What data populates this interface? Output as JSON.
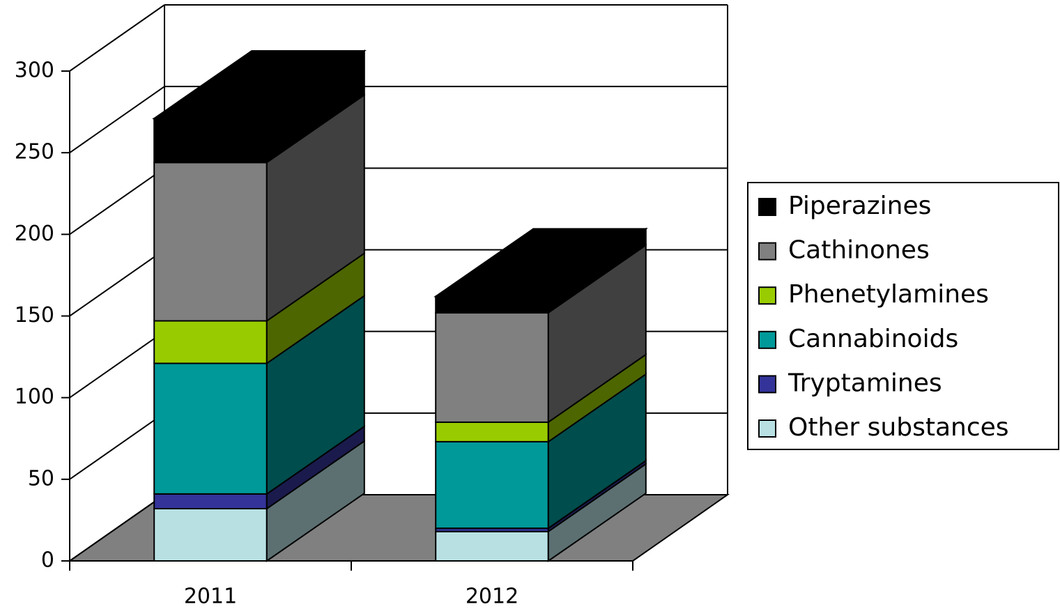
{
  "chart_data": {
    "type": "bar3d_stacked",
    "categories": [
      "2011",
      "2012"
    ],
    "series": [
      {
        "name": "Other substances",
        "color": "#b8e0e3",
        "values": [
          32,
          18
        ]
      },
      {
        "name": "Tryptamines",
        "color": "#333399",
        "values": [
          9,
          2
        ]
      },
      {
        "name": "Cannabinoids",
        "color": "#009999",
        "values": [
          80,
          53
        ]
      },
      {
        "name": "Phenetylamines",
        "color": "#99cc00",
        "values": [
          26,
          12
        ]
      },
      {
        "name": "Cathinones",
        "color": "#808080",
        "values": [
          97,
          67
        ]
      },
      {
        "name": "Piperazines",
        "color": "#000000",
        "values": [
          27,
          10
        ]
      }
    ],
    "ylim": [
      0,
      300
    ],
    "yticks": [
      0,
      50,
      100,
      150,
      200,
      250,
      300
    ],
    "grid": true,
    "legend": "right"
  }
}
